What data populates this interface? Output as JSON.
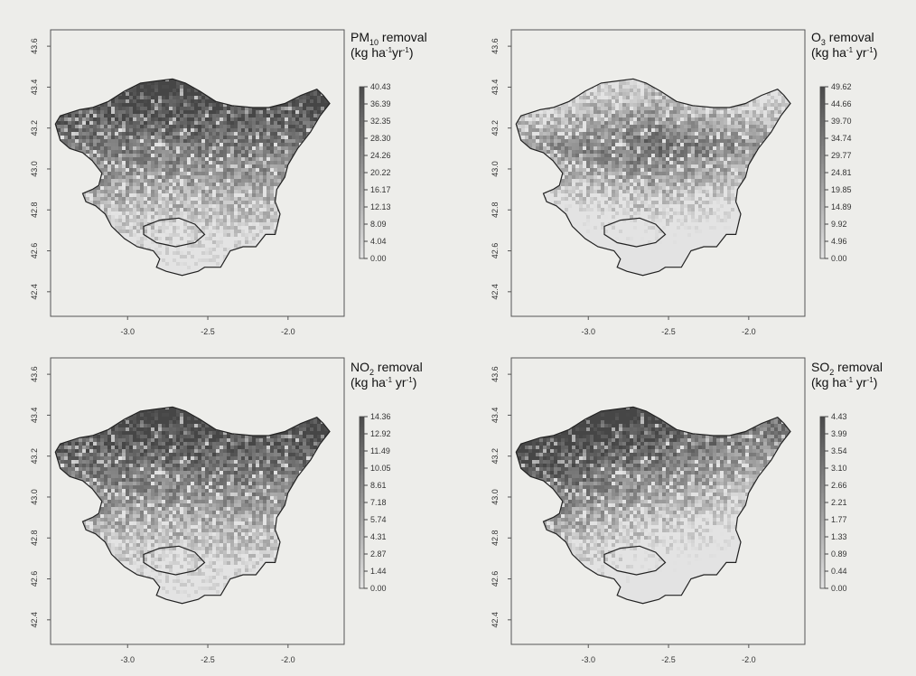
{
  "panels": [
    {
      "title_main": "PM",
      "title_sub": "10",
      "title_tail": " removal",
      "units_parts": [
        "(kg ha",
        "-1",
        "yr",
        "-1",
        ")"
      ],
      "legend_values": [
        "40.43",
        "36.39",
        "32.35",
        "28.30",
        "24.26",
        "20.22",
        "16.17",
        "12.13",
        "8.09",
        "4.04",
        "0.00"
      ],
      "pattern": "north"
    },
    {
      "title_main": "O",
      "title_sub": "3",
      "title_tail": " removal",
      "units_parts": [
        "(kg ha",
        "-1",
        " yr",
        "-1",
        ")"
      ],
      "legend_values": [
        "49.62",
        "44.66",
        "39.70",
        "34.74",
        "29.77",
        "24.81",
        "19.85",
        "14.89",
        "9.92",
        "4.96",
        "0.00"
      ],
      "pattern": "center"
    },
    {
      "title_main": "NO",
      "title_sub": "2",
      "title_tail": " removal",
      "units_parts": [
        "(kg ha",
        "-1",
        " yr",
        "-1",
        ")"
      ],
      "legend_values": [
        "14.36",
        "12.92",
        "11.49",
        "10.05",
        "8.61",
        "7.18",
        "5.74",
        "4.31",
        "2.87",
        "1.44",
        "0.00"
      ],
      "pattern": "north"
    },
    {
      "title_main": "SO",
      "title_sub": "2",
      "title_tail": " removal",
      "units_parts": [
        "(kg ha",
        "-1",
        " yr",
        "-1",
        ")"
      ],
      "legend_values": [
        "4.43",
        "3.99",
        "3.54",
        "3.10",
        "2.66",
        "2.21",
        "1.77",
        "1.33",
        "0.89",
        "0.44",
        "0.00"
      ],
      "pattern": "northwest"
    }
  ],
  "axes": {
    "x_ticks": [
      -3.0,
      -2.5,
      -2.0
    ],
    "x_tick_labels": [
      "-3.0",
      "-2.5",
      "-2.0"
    ],
    "y_ticks": [
      42.4,
      42.6,
      42.8,
      43.0,
      43.2,
      43.4,
      43.6
    ],
    "y_tick_labels": [
      "42.4",
      "42.6",
      "42.8",
      "43.0",
      "43.2",
      "43.4",
      "43.6"
    ],
    "x_range": [
      -3.48,
      -1.65
    ],
    "y_range": [
      42.28,
      43.68
    ]
  },
  "colors": {
    "background": "#ededea",
    "map_outline": "#222222",
    "dark": "#4a4a4a",
    "light": "#e3e3e3"
  }
}
